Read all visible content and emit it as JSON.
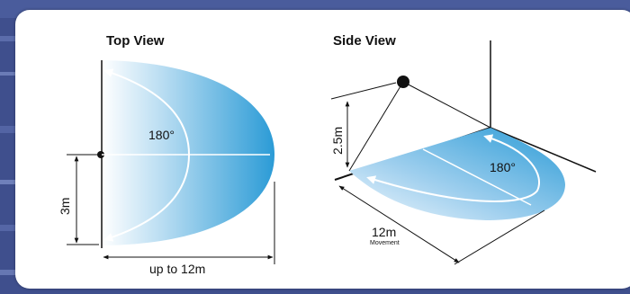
{
  "top_view": {
    "title": "Top View",
    "angle": "180°",
    "height_label": "3m",
    "range_label": "up to 12m"
  },
  "side_view": {
    "title": "Side View",
    "height_label": "2.5m",
    "angle": "180°",
    "range_label": "12m",
    "range_sublabel": "Movement"
  },
  "colors": {
    "background": "#3f4f8d",
    "card": "#ffffff",
    "coverage_light": "#e6f3fb",
    "coverage_dark": "#2f9fd8",
    "line": "#111111",
    "arc": "#ffffff"
  }
}
